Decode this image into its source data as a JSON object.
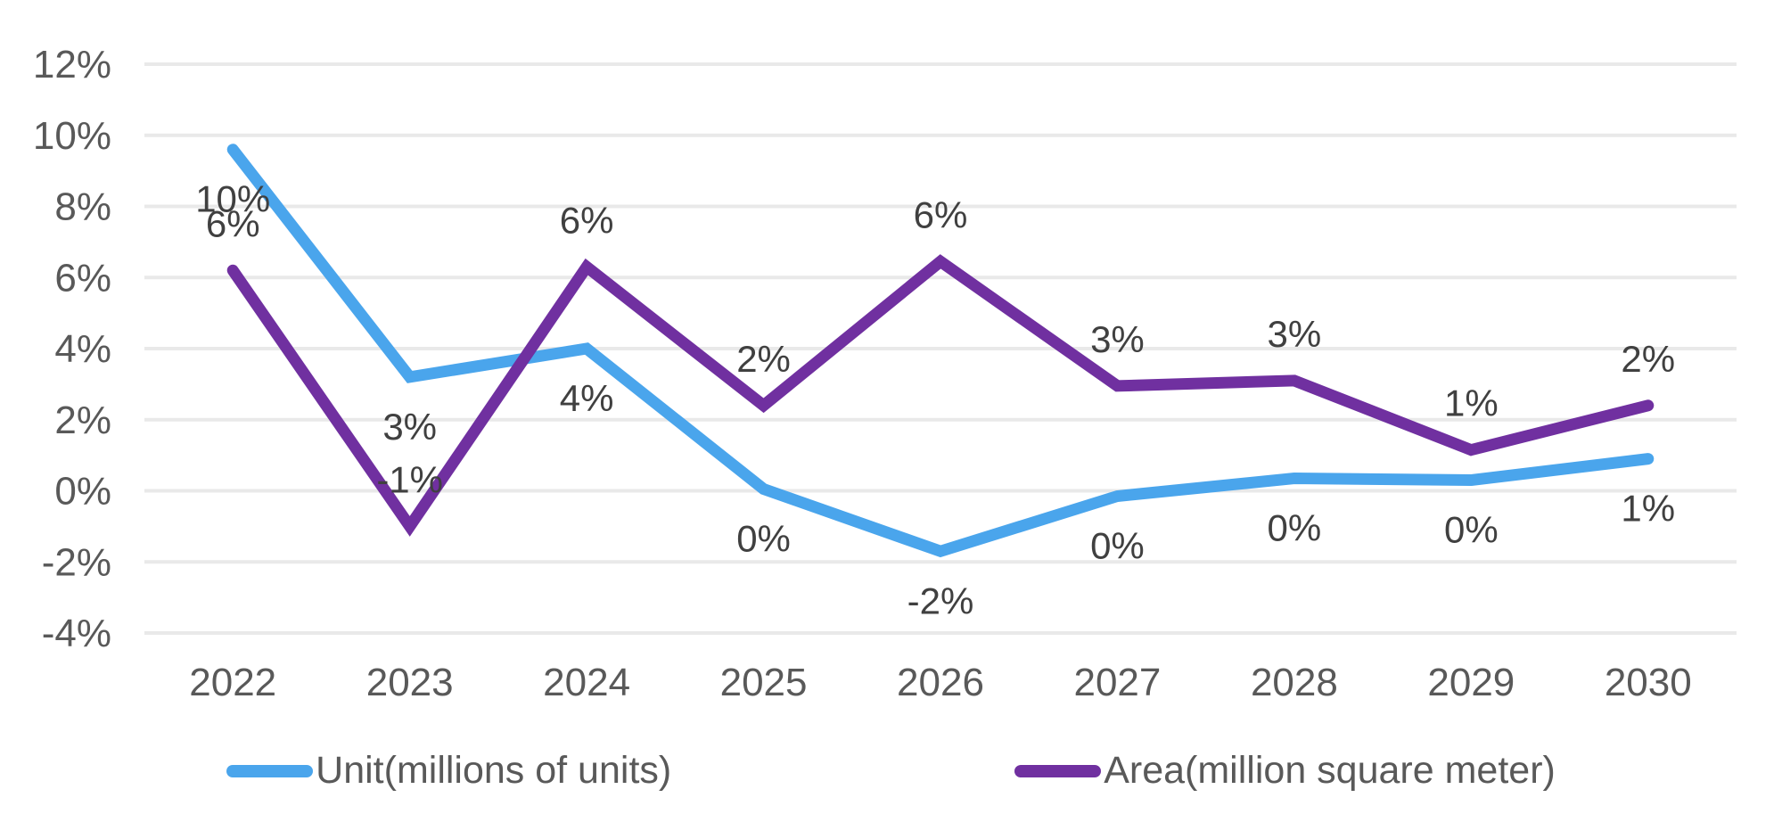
{
  "chart_data": {
    "type": "line",
    "title": "",
    "xlabel": "",
    "ylabel": "",
    "categories": [
      "2022",
      "2023",
      "2024",
      "2025",
      "2026",
      "2027",
      "2028",
      "2029",
      "2030"
    ],
    "series": [
      {
        "name": "Unit(millions of units)",
        "color": "#4AA5EC",
        "values": [
          9.6,
          3.2,
          4.0,
          0.05,
          -1.7,
          -0.15,
          0.35,
          0.3,
          0.9
        ],
        "labels": [
          "10%",
          "3%",
          "4%",
          "0%",
          "-2%",
          "0%",
          "0%",
          "0%",
          "1%"
        ],
        "label_position": "below"
      },
      {
        "name": "Area(million square meter)",
        "color": "#7030A0",
        "values": [
          6.2,
          -1.0,
          6.3,
          2.4,
          6.45,
          2.95,
          3.1,
          1.15,
          2.4
        ],
        "labels": [
          "6%",
          "-1%",
          "6%",
          "2%",
          "6%",
          "3%",
          "3%",
          "1%",
          "2%"
        ],
        "label_position": "above"
      }
    ],
    "y_axis": {
      "tick_labels": [
        "12%",
        "10%",
        "8%",
        "6%",
        "4%",
        "2%",
        "0%",
        "-2%",
        "-4%"
      ],
      "tick_values": [
        12,
        10,
        8,
        6,
        4,
        2,
        0,
        -2,
        -4
      ],
      "min": -4,
      "max": 12,
      "unit": "%"
    },
    "grid": true,
    "legend_position": "bottom",
    "colors": {
      "gridline": "#E9E9E9",
      "axis_text": "#595959",
      "data_label_text": "#404040",
      "background": "#FFFFFF"
    }
  }
}
